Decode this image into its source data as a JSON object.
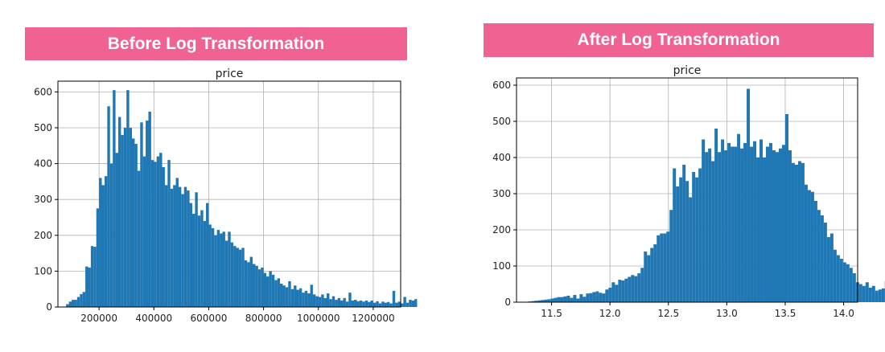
{
  "panels": {
    "left_banner": "Before Log Transformation",
    "right_banner": "After Log Transformation"
  },
  "colors": {
    "banner": "#f06292",
    "bar": "#1f77b4",
    "grid": "#b0b0b0"
  },
  "chart_data": [
    {
      "type": "bar",
      "title": "price",
      "xlabel": "",
      "ylabel": "",
      "grid": true,
      "xlim": [
        50000,
        1300000
      ],
      "ylim": [
        0,
        630
      ],
      "xticks": [
        200000,
        400000,
        600000,
        800000,
        1000000,
        1200000
      ],
      "xtick_labels": [
        "200000",
        "400000",
        "600000",
        "800000",
        "1000000",
        "1200000"
      ],
      "yticks": [
        0,
        100,
        200,
        300,
        400,
        500,
        600
      ],
      "ytick_labels": [
        "0",
        "100",
        "200",
        "300",
        "400",
        "500",
        "600"
      ],
      "bin_start": 80000,
      "bin_width": 10000,
      "values": [
        8,
        15,
        20,
        20,
        28,
        36,
        42,
        113,
        110,
        170,
        168,
        275,
        360,
        340,
        365,
        560,
        400,
        605,
        430,
        530,
        480,
        500,
        605,
        500,
        470,
        455,
        380,
        515,
        420,
        520,
        545,
        410,
        405,
        420,
        430,
        390,
        340,
        410,
        330,
        340,
        360,
        335,
        315,
        335,
        325,
        290,
        260,
        320,
        255,
        270,
        240,
        290,
        230,
        220,
        200,
        215,
        205,
        210,
        185,
        210,
        180,
        170,
        165,
        160,
        165,
        130,
        125,
        140,
        120,
        115,
        105,
        110,
        95,
        85,
        100,
        90,
        75,
        80,
        65,
        60,
        55,
        72,
        50,
        60,
        48,
        52,
        40,
        45,
        38,
        62,
        35,
        30,
        28,
        35,
        25,
        38,
        22,
        30,
        20,
        25,
        18,
        25,
        15,
        40,
        18,
        20,
        16,
        18,
        15,
        18,
        14,
        18,
        12,
        16,
        10,
        15,
        12,
        14,
        10,
        45,
        12,
        15,
        10,
        28,
        12,
        20,
        18,
        22
      ]
    },
    {
      "type": "bar",
      "title": "price",
      "xlabel": "",
      "ylabel": "",
      "grid": true,
      "xlim": [
        11.2,
        14.12
      ],
      "ylim": [
        0,
        620
      ],
      "xticks": [
        11.5,
        12.0,
        12.5,
        13.0,
        13.5,
        14.0
      ],
      "xtick_labels": [
        "11.5",
        "12.0",
        "12.5",
        "13.0",
        "13.5",
        "14.0"
      ],
      "yticks": [
        0,
        100,
        200,
        300,
        400,
        500,
        600
      ],
      "ytick_labels": [
        "0",
        "100",
        "200",
        "300",
        "400",
        "500",
        "600"
      ],
      "bin_start": 11.3,
      "bin_width": 0.0275,
      "values": [
        2,
        3,
        4,
        5,
        6,
        7,
        8,
        10,
        12,
        14,
        14,
        16,
        18,
        12,
        20,
        10,
        22,
        15,
        24,
        25,
        28,
        30,
        26,
        24,
        35,
        40,
        55,
        48,
        62,
        60,
        65,
        70,
        75,
        72,
        80,
        95,
        140,
        130,
        150,
        160,
        185,
        190,
        190,
        195,
        255,
        370,
        320,
        345,
        380,
        335,
        290,
        360,
        345,
        370,
        450,
        415,
        425,
        390,
        480,
        415,
        450,
        420,
        440,
        430,
        430,
        465,
        425,
        440,
        590,
        430,
        445,
        400,
        450,
        400,
        430,
        440,
        420,
        415,
        425,
        435,
        520,
        420,
        385,
        380,
        390,
        385,
        325,
        310,
        305,
        280,
        255,
        240,
        220,
        180,
        190,
        145,
        130,
        120,
        110,
        105,
        95,
        80,
        55,
        50,
        45,
        55,
        40,
        45,
        32,
        35,
        38,
        58,
        35,
        40,
        55,
        50
      ]
    }
  ]
}
